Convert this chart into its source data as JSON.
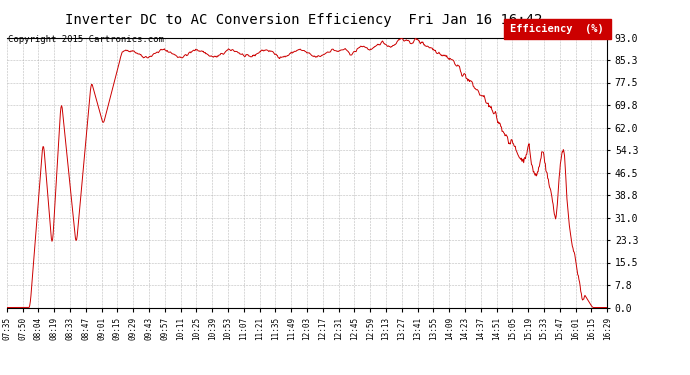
{
  "title": "Inverter DC to AC Conversion Efficiency  Fri Jan 16 16:42",
  "copyright": "Copyright 2015 Cartronics.com",
  "legend_label": "Efficiency  (%)",
  "line_color": "#cc0000",
  "background_color": "#ffffff",
  "plot_bg_color": "#ffffff",
  "grid_color": "#aaaaaa",
  "yticks": [
    0.0,
    7.8,
    15.5,
    23.3,
    31.0,
    38.8,
    46.5,
    54.3,
    62.0,
    69.8,
    77.5,
    85.3,
    93.0
  ],
  "xtick_labels": [
    "07:35",
    "07:50",
    "08:04",
    "08:19",
    "08:33",
    "08:47",
    "09:01",
    "09:15",
    "09:29",
    "09:43",
    "09:57",
    "10:11",
    "10:25",
    "10:39",
    "10:53",
    "11:07",
    "11:21",
    "11:35",
    "11:49",
    "12:03",
    "12:17",
    "12:31",
    "12:45",
    "12:59",
    "13:13",
    "13:27",
    "13:41",
    "13:55",
    "14:09",
    "14:23",
    "14:37",
    "14:51",
    "15:05",
    "15:19",
    "15:33",
    "15:47",
    "16:01",
    "16:15",
    "16:29"
  ],
  "ymin": 0.0,
  "ymax": 93.0,
  "figwidth": 6.9,
  "figheight": 3.75,
  "dpi": 100
}
